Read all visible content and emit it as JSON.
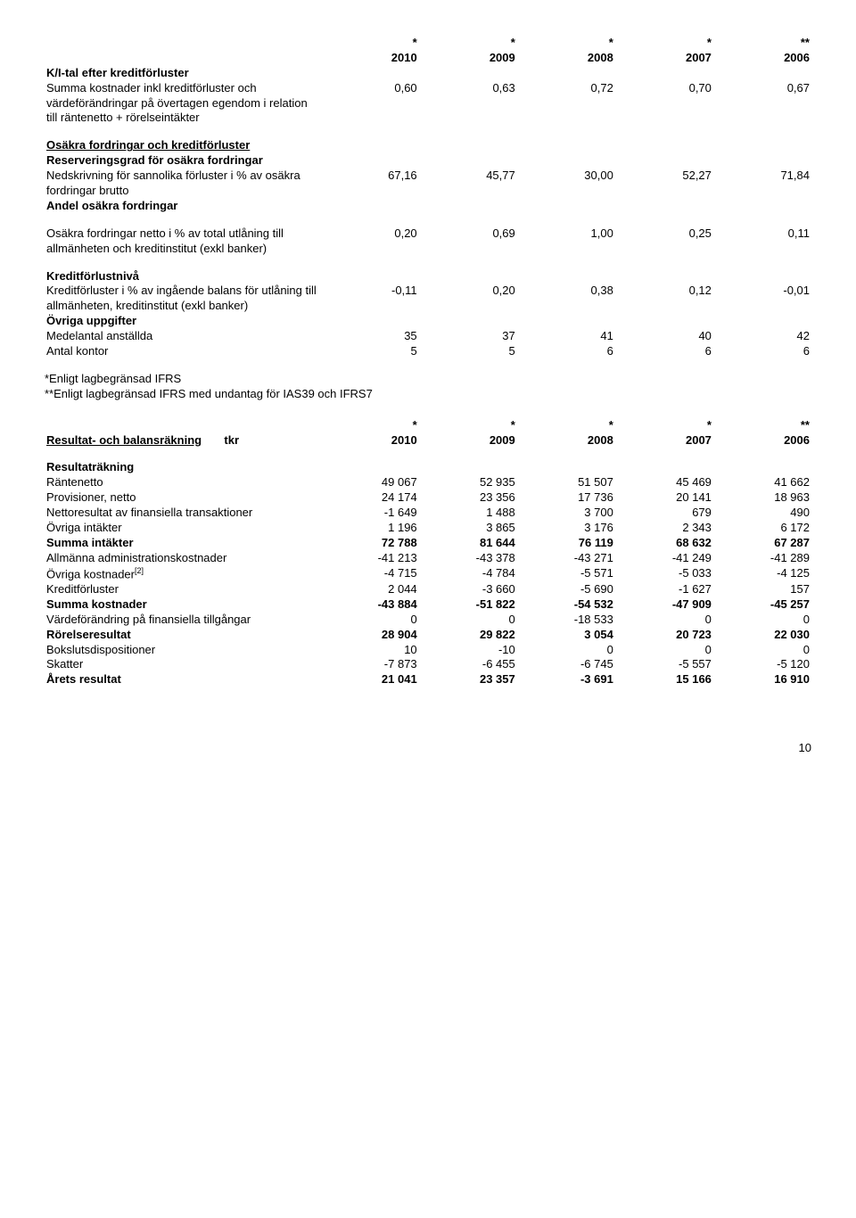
{
  "years": [
    "2010",
    "2009",
    "2008",
    "2007",
    "2006"
  ],
  "stars": [
    "*",
    "*",
    "*",
    "*",
    "**"
  ],
  "section1": {
    "title": "K/I-tal efter kreditförluster",
    "row1_label": "Summa kostnader inkl kreditförluster och värdeförändringar på övertagen egendom i relation till räntenetto + rörelseintäkter",
    "row1": [
      "0,60",
      "0,63",
      "0,72",
      "0,70",
      "0,67"
    ]
  },
  "section2": {
    "title": "Osäkra fordringar och kreditförluster",
    "sub1": "Reserveringsgrad för osäkra fordringar",
    "row_ned_label": "Nedskrivning för sannolika förluster i % av osäkra fordringar brutto",
    "row_ned": [
      "67,16",
      "45,77",
      "30,00",
      "52,27",
      "71,84"
    ],
    "sub2": "Andel osäkra fordringar",
    "row_os_label": "Osäkra fordringar netto i % av total utlåning till allmänheten och kreditinstitut (exkl banker)",
    "row_os": [
      "0,20",
      "0,69",
      "1,00",
      "0,25",
      "0,11"
    ]
  },
  "section3": {
    "title": "Kreditförlustnivå",
    "row_kf_label": "Kreditförluster i % av ingående balans för utlåning till allmänheten, kreditinstitut (exkl banker)",
    "row_kf": [
      "-0,11",
      "0,20",
      "0,38",
      "0,12",
      "-0,01"
    ],
    "sub": "Övriga uppgifter",
    "row_medel_label": "Medelantal anställda",
    "row_medel": [
      "35",
      "37",
      "41",
      "40",
      "42"
    ],
    "row_kontor_label": "Antal kontor",
    "row_kontor": [
      "5",
      "5",
      "6",
      "6",
      "6"
    ]
  },
  "notes": {
    "n1": "*Enligt lagbegränsad IFRS",
    "n2": "**Enligt lagbegränsad IFRS med undantag för IAS39 och IFRS7"
  },
  "section4": {
    "title": "Resultat- och balansräkning",
    "unit": "tkr",
    "sub_res": "Resultaträkning",
    "rows": [
      {
        "label": "Räntenetto",
        "v": [
          "49 067",
          "52 935",
          "51 507",
          "45 469",
          "41 662"
        ]
      },
      {
        "label": "Provisioner, netto",
        "v": [
          "24 174",
          "23 356",
          "17 736",
          "20 141",
          "18 963"
        ]
      },
      {
        "label": "Nettoresultat av finansiella transaktioner",
        "v": [
          "-1 649",
          "1 488",
          "3 700",
          "679",
          "490"
        ]
      },
      {
        "label": "Övriga intäkter",
        "v": [
          "1 196",
          "3 865",
          "3 176",
          "2 343",
          "6 172"
        ]
      },
      {
        "label": "Summa intäkter",
        "bold": true,
        "v": [
          "72 788",
          "81 644",
          "76 119",
          "68 632",
          "67 287"
        ]
      },
      {
        "label": "Allmänna administrationskostnader",
        "v": [
          "-41 213",
          "-43 378",
          "-43 271",
          "-41 249",
          "-41 289"
        ]
      },
      {
        "label": "Övriga kostnader",
        "sup": "[2]",
        "v": [
          "-4 715",
          "-4 784",
          "-5 571",
          "-5 033",
          "-4 125"
        ]
      },
      {
        "label": "Kreditförluster",
        "v": [
          "2 044",
          "-3 660",
          "-5 690",
          "-1 627",
          "157"
        ]
      },
      {
        "label": "Summa kostnader",
        "bold": true,
        "v": [
          "-43 884",
          "-51 822",
          "-54 532",
          "-47 909",
          "-45 257"
        ]
      },
      {
        "label": "Värdeförändring på finansiella tillgångar",
        "v": [
          "0",
          "0",
          "-18 533",
          "0",
          "0"
        ]
      },
      {
        "label": "Rörelseresultat",
        "bold": true,
        "v": [
          "28 904",
          "29 822",
          "3 054",
          "20 723",
          "22 030"
        ]
      },
      {
        "label": "Bokslutsdispositioner",
        "v": [
          "10",
          "-10",
          "0",
          "0",
          "0"
        ]
      },
      {
        "label": "Skatter",
        "v": [
          "-7 873",
          "-6 455",
          "-6 745",
          "-5 557",
          "-5 120"
        ]
      },
      {
        "label": "Årets resultat",
        "bold": true,
        "v": [
          "21 041",
          "23 357",
          "-3 691",
          "15 166",
          "16 910"
        ]
      }
    ]
  },
  "page": "10"
}
